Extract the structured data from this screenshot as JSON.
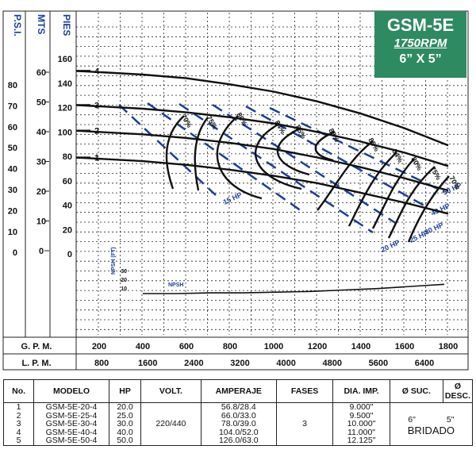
{
  "title": {
    "model": "GSM-5E",
    "rpm": "1750RPM",
    "size": "6” X 5”"
  },
  "axes": {
    "psi_label": "P.S.I.",
    "mts_label": "MTS",
    "pies_label": "PIES",
    "psi_ticks": [
      "80",
      "70",
      "60",
      "50",
      "40",
      "30",
      "20",
      "10",
      "0"
    ],
    "mts_ticks": [
      "60",
      "50",
      "40",
      "30",
      "20",
      "10",
      "0"
    ],
    "pies_ticks": [
      "160",
      "140",
      "120",
      "100",
      "80",
      "60",
      "40",
      "20",
      "0"
    ],
    "gpm_label": "G. P. M.",
    "gpm_ticks": [
      "200",
      "400",
      "600",
      "800",
      "1000",
      "1200",
      "1400",
      "1600",
      "1800"
    ],
    "lpm_label": "L. P. M.",
    "lpm_ticks": [
      "800",
      "1600",
      "2400",
      "3200",
      "4000",
      "4800",
      "5600",
      "6400"
    ]
  },
  "chart_data": {
    "type": "line",
    "xlabel": "G. P. M.",
    "ylabel": "PIES",
    "xlim": [
      0,
      1800
    ],
    "ylim": [
      0,
      160
    ],
    "grid": true,
    "series": [
      {
        "name": "1",
        "x": [
          0,
          200,
          400,
          600,
          800,
          1000,
          1200,
          1400,
          1600,
          1800
        ],
        "y": [
          79,
          78,
          76,
          73,
          69,
          64,
          58,
          50,
          42,
          33
        ]
      },
      {
        "name": "2",
        "x": [
          0,
          200,
          400,
          600,
          800,
          1000,
          1200,
          1400,
          1600,
          1800
        ],
        "y": [
          101,
          100,
          98,
          95,
          91,
          86,
          79,
          71,
          62,
          52
        ]
      },
      {
        "name": "3",
        "x": [
          0,
          200,
          400,
          600,
          800,
          1000,
          1200,
          1400,
          1600,
          1800
        ],
        "y": [
          122,
          121,
          119,
          116,
          112,
          107,
          100,
          92,
          83,
          72
        ]
      },
      {
        "name": "4",
        "x": [
          0,
          200,
          400,
          600,
          800,
          1000,
          1200,
          1400,
          1600,
          1800
        ],
        "y": [
          150,
          149,
          147,
          144,
          139,
          133,
          125,
          115,
          103,
          89
        ]
      },
      {
        "name": "NPSH",
        "x": [
          0,
          200,
          400,
          600,
          800,
          1000,
          1200,
          1400,
          1600,
          1800
        ],
        "y": [
          10,
          10,
          11,
          11,
          12,
          13,
          15,
          17,
          20,
          23
        ]
      }
    ],
    "npsh": {
      "label": "NPSH",
      "axis_label": "NPSH (FT)",
      "ticks": [
        "30",
        "20",
        "10"
      ]
    },
    "efficiency_labels": [
      "70%",
      "75%",
      "80%",
      "84%",
      "85%",
      "88%",
      "85%",
      "84%",
      "80%",
      "75%",
      "70%"
    ],
    "hp_labels": [
      "15 HP",
      "20 HP",
      "25 HP",
      "30 HP",
      "40 HP",
      "50 HP"
    ]
  },
  "table": {
    "headers": [
      "No.",
      "MODELO",
      "HP",
      "VOLT.",
      "AMPERAJE",
      "FASES",
      "DIA. IMP.",
      "Ø SUC.",
      "Ø DESC."
    ],
    "no": [
      "1",
      "2",
      "3",
      "4",
      "5"
    ],
    "modelo": [
      "GSM-5E-20-4",
      "GSM-5E-25-4",
      "GSM-5E-30-4",
      "GSM-5E-40-4",
      "GSM-5E-50-4"
    ],
    "hp": [
      "20.0",
      "25.0",
      "30.0",
      "40.0",
      "50.0"
    ],
    "volt": "220/440",
    "amperaje": [
      "56.8/28.4",
      "66.0/33.0",
      "78.0/39.0",
      "104.0/52.0",
      "126.0/63.0"
    ],
    "fases": "3",
    "dia_imp": [
      "9.000\"",
      "9.500\"",
      "10.000\"",
      "11.000\"",
      "12.125\""
    ],
    "suc": "6\"",
    "desc": "5\"",
    "bridado": "BRIDADO"
  },
  "colors": {
    "curve": "#111111",
    "hp_line": "#1a3f9a",
    "axis_label": "#1a3f9a",
    "title_bg": "#2e8a60"
  }
}
